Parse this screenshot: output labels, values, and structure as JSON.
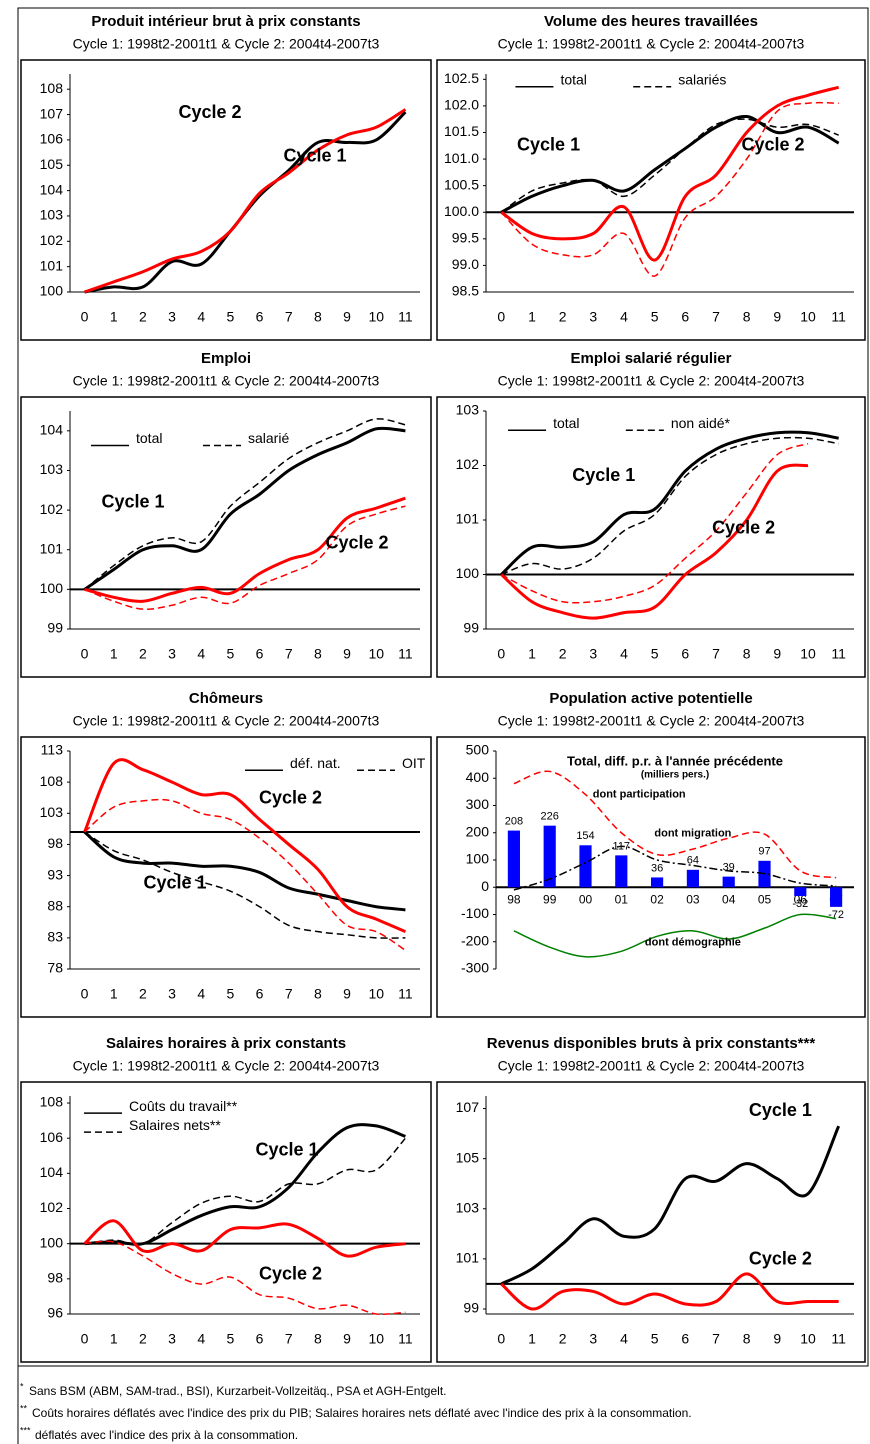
{
  "chart_data": [
    {
      "type": "line",
      "title": "Produit intérieur brut à prix constants",
      "subtitle": "Cycle 1: 1998t2-2001t1 & Cycle 2: 2004t4-2007t3",
      "x": [
        0,
        1,
        2,
        3,
        4,
        5,
        6,
        7,
        8,
        9,
        10,
        11
      ],
      "xlim": [
        -0.5,
        11.5
      ],
      "xticks": [
        0,
        1,
        2,
        3,
        4,
        5,
        6,
        7,
        8,
        9,
        10,
        11
      ],
      "ylim": [
        100,
        108.6
      ],
      "yticks": [
        100,
        101,
        102,
        103,
        104,
        105,
        106,
        107,
        108
      ],
      "series": [
        {
          "color": "#000000",
          "values": [
            100,
            100.2,
            100.2,
            101.2,
            101.1,
            102.4,
            103.8,
            104.8,
            105.9,
            105.9,
            106.0,
            107.1
          ]
        },
        {
          "color": "#ff0000",
          "values": [
            100,
            100.4,
            100.8,
            101.3,
            101.6,
            102.4,
            103.9,
            104.7,
            105.6,
            106.2,
            106.5,
            107.2
          ]
        }
      ],
      "annotations": [
        {
          "text": "Cycle 2",
          "color": "#ff0000"
        },
        {
          "text": "Cycle 1",
          "color": "#000000"
        }
      ]
    },
    {
      "type": "line",
      "title": "Volume des heures travaillées",
      "subtitle": "Cycle 1: 1998t2-2001t1 & Cycle 2: 2004t4-2007t3",
      "x": [
        0,
        1,
        2,
        3,
        4,
        5,
        6,
        7,
        8,
        9,
        10,
        11
      ],
      "xlim": [
        -0.5,
        11.5
      ],
      "xticks": [
        0,
        1,
        2,
        3,
        4,
        5,
        6,
        7,
        8,
        9,
        10,
        11
      ],
      "ylim": [
        98.5,
        102.6
      ],
      "yticks": [
        98.5,
        {
          "value": 99,
          "label": "99.0"
        },
        99.5,
        {
          "value": 100,
          "label": "100.0"
        },
        100.5,
        {
          "value": 101,
          "label": "101.0"
        },
        101.5,
        {
          "value": 102,
          "label": "102.0"
        },
        102.5
      ],
      "reference_line": 100,
      "legend": [
        {
          "name": "total",
          "dash": false
        },
        {
          "name": "salariés",
          "dash": true
        }
      ],
      "series": [
        {
          "color": "#000000",
          "values": [
            100,
            100.3,
            100.5,
            100.6,
            100.4,
            100.8,
            101.2,
            101.6,
            101.8,
            101.5,
            101.6,
            101.3
          ]
        },
        {
          "color": "#000000",
          "dash": "dash",
          "values": [
            100,
            100.4,
            100.55,
            100.6,
            100.3,
            100.7,
            101.2,
            101.65,
            101.75,
            101.6,
            101.65,
            101.45
          ]
        },
        {
          "color": "#ff0000",
          "values": [
            100,
            99.6,
            99.5,
            99.6,
            100.1,
            99.1,
            100.3,
            100.7,
            101.5,
            102.0,
            102.2,
            102.35
          ]
        },
        {
          "color": "#ff0000",
          "dash": "dash",
          "values": [
            100,
            99.4,
            99.2,
            99.2,
            99.6,
            98.8,
            99.9,
            100.3,
            101.0,
            101.9,
            102.05,
            102.05
          ]
        }
      ],
      "annotations": [
        {
          "text": "Cycle 1",
          "color": "#000000"
        },
        {
          "text": "Cycle 2",
          "color": "#ff0000"
        }
      ]
    },
    {
      "type": "line",
      "title": "Emploi",
      "subtitle": "Cycle 1: 1998t2-2001t1 & Cycle 2: 2004t4-2007t3",
      "x": [
        0,
        1,
        2,
        3,
        4,
        5,
        6,
        7,
        8,
        9,
        10,
        11
      ],
      "xlim": [
        -0.5,
        11.5
      ],
      "xticks": [
        0,
        1,
        2,
        3,
        4,
        5,
        6,
        7,
        8,
        9,
        10,
        11
      ],
      "ylim": [
        99,
        104.5
      ],
      "yticks": [
        99,
        100,
        101,
        102,
        103,
        104
      ],
      "reference_line": 100,
      "legend": [
        {
          "name": "total",
          "dash": false
        },
        {
          "name": "salarié",
          "dash": true
        }
      ],
      "series": [
        {
          "color": "#000000",
          "values": [
            100,
            100.5,
            101.0,
            101.1,
            101.0,
            101.9,
            102.4,
            103.0,
            103.4,
            103.7,
            104.05,
            104.0
          ]
        },
        {
          "color": "#000000",
          "dash": "dash",
          "values": [
            100,
            100.6,
            101.1,
            101.3,
            101.2,
            102.1,
            102.7,
            103.3,
            103.7,
            104.0,
            104.3,
            104.15
          ]
        },
        {
          "color": "#ff0000",
          "values": [
            100,
            99.8,
            99.7,
            99.9,
            100.05,
            99.9,
            100.4,
            100.75,
            101.0,
            101.8,
            102.05,
            102.3
          ]
        },
        {
          "color": "#ff0000",
          "dash": "dash",
          "values": [
            100,
            99.7,
            99.5,
            99.6,
            99.8,
            99.65,
            100.1,
            100.4,
            100.75,
            101.6,
            101.9,
            102.1
          ]
        }
      ],
      "annotations": [
        {
          "text": "Cycle 1",
          "color": "#000000"
        },
        {
          "text": "Cycle 2",
          "color": "#ff0000"
        }
      ]
    },
    {
      "type": "line",
      "title": "Emploi salarié régulier",
      "subtitle": "Cycle 1: 1998t2-2001t1 & Cycle 2: 2004t4-2007t3",
      "x": [
        0,
        1,
        2,
        3,
        4,
        5,
        6,
        7,
        8,
        9,
        10,
        11
      ],
      "xlim": [
        -0.5,
        11.5
      ],
      "xticks": [
        0,
        1,
        2,
        3,
        4,
        5,
        6,
        7,
        8,
        9,
        10,
        11
      ],
      "ylim": [
        99,
        103
      ],
      "yticks": [
        99,
        100,
        101,
        102,
        103
      ],
      "reference_line": 100,
      "legend": [
        {
          "name": "total",
          "dash": false
        },
        {
          "name": "non aidé*",
          "dash": true
        }
      ],
      "series": [
        {
          "color": "#000000",
          "values": [
            100,
            100.5,
            100.5,
            100.6,
            101.1,
            101.2,
            101.9,
            102.3,
            102.5,
            102.6,
            102.6,
            102.5
          ]
        },
        {
          "color": "#000000",
          "dash": "dash",
          "values": [
            100,
            100.2,
            100.1,
            100.3,
            100.8,
            101.1,
            101.8,
            102.2,
            102.4,
            102.5,
            102.5,
            102.4
          ]
        },
        {
          "color": "#ff0000",
          "values": [
            100,
            99.5,
            99.3,
            99.2,
            99.3,
            99.4,
            100.0,
            100.4,
            101.0,
            101.9,
            102.0,
            null
          ]
        },
        {
          "color": "#ff0000",
          "dash": "dash",
          "values": [
            100,
            99.7,
            99.5,
            99.5,
            99.6,
            99.8,
            100.3,
            100.8,
            101.5,
            102.2,
            102.4,
            null
          ]
        }
      ],
      "annotations": [
        {
          "text": "Cycle 1",
          "color": "#000000"
        },
        {
          "text": "Cycle 2",
          "color": "#ff0000"
        }
      ]
    },
    {
      "type": "line",
      "title": "Chômeurs",
      "subtitle": "Cycle 1: 1998t2-2001t1 & Cycle 2: 2004t4-2007t3",
      "x": [
        0,
        1,
        2,
        3,
        4,
        5,
        6,
        7,
        8,
        9,
        10,
        11
      ],
      "xlim": [
        -0.5,
        11.5
      ],
      "xticks": [
        0,
        1,
        2,
        3,
        4,
        5,
        6,
        7,
        8,
        9,
        10,
        11
      ],
      "ylim": [
        78,
        113
      ],
      "yticks": [
        78,
        83,
        88,
        93,
        98,
        103,
        108,
        113
      ],
      "reference_line": 100,
      "legend": [
        {
          "name": "déf. nat.",
          "dash": false
        },
        {
          "name": "OIT",
          "dash": true
        }
      ],
      "series": [
        {
          "color": "#000000",
          "values": [
            100,
            96,
            95,
            95,
            94.5,
            94.5,
            93.5,
            91,
            90,
            89,
            88,
            87.5
          ]
        },
        {
          "color": "#000000",
          "dash": "dash",
          "values": [
            100,
            97,
            95.5,
            93.5,
            92,
            90.5,
            88,
            85,
            84,
            83.5,
            83,
            83
          ]
        },
        {
          "color": "#ff0000",
          "values": [
            100,
            111,
            110,
            108,
            106,
            106,
            102,
            98,
            94,
            88,
            86,
            84
          ]
        },
        {
          "color": "#ff0000",
          "dash": "dash",
          "values": [
            100,
            104,
            105,
            105,
            103,
            102,
            99,
            95,
            90,
            85,
            84,
            81
          ]
        }
      ],
      "annotations": [
        {
          "text": "Cycle 2",
          "color": "#ff0000"
        },
        {
          "text": "Cycle 1",
          "color": "#000000"
        }
      ]
    },
    {
      "type": "bar",
      "title": "Population active potentielle",
      "subtitle": "Cycle 1: 1998t2-2001t1 & Cycle 2: 2004t4-2007t3",
      "categories": [
        "98",
        "99",
        "00",
        "01",
        "02",
        "03",
        "04",
        "05",
        "06",
        "07"
      ],
      "ylim": [
        -300,
        500
      ],
      "yticks": [
        -300,
        -200,
        -100,
        0,
        100,
        200,
        300,
        400,
        500
      ],
      "reference_line": 0,
      "series": [
        {
          "type": "bar",
          "color": "#0000ff",
          "values": [
            208,
            226,
            154,
            117,
            36,
            64,
            39,
            97,
            -32,
            -72
          ]
        },
        {
          "type": "line",
          "color": "#ff0000",
          "dash": "dash",
          "values": [
            380,
            425,
            340,
            200,
            120,
            140,
            180,
            195,
            60,
            35
          ]
        },
        {
          "type": "line",
          "color": "#000000",
          "dash": "dashdot",
          "values": [
            -10,
            30,
            90,
            150,
            100,
            80,
            60,
            50,
            15,
            5
          ]
        },
        {
          "type": "line",
          "color": "#008000",
          "values": [
            -160,
            -220,
            -255,
            -235,
            -180,
            -160,
            -190,
            -150,
            -100,
            -115
          ]
        }
      ],
      "annotations": [
        {
          "text": "Total, diff. p.r. à l'année précédente",
          "color": "#0000ff"
        },
        {
          "text": "(milliers pers.)",
          "color": "#0000ff"
        },
        {
          "text": "dont participation",
          "color": "#ff0000"
        },
        {
          "text": "dont migration",
          "color": "#000000"
        },
        {
          "text": "dont démographie",
          "color": "#008000"
        }
      ]
    },
    {
      "type": "line",
      "title": "Salaires horaires à prix constants",
      "subtitle": "Cycle 1: 1998t2-2001t1 & Cycle 2: 2004t4-2007t3",
      "x": [
        0,
        1,
        2,
        3,
        4,
        5,
        6,
        7,
        8,
        9,
        10,
        11
      ],
      "xlim": [
        -0.5,
        11.5
      ],
      "xticks": [
        0,
        1,
        2,
        3,
        4,
        5,
        6,
        7,
        8,
        9,
        10,
        11
      ],
      "ylim": [
        96,
        108.4
      ],
      "yticks": [
        96,
        98,
        100,
        102,
        104,
        106,
        108
      ],
      "reference_line": 100,
      "legend": [
        {
          "name": "Coûts du travail**",
          "dash": false
        },
        {
          "name": "Salaires nets**",
          "dash": true
        }
      ],
      "series": [
        {
          "color": "#000000",
          "values": [
            100,
            100.1,
            100,
            100.8,
            101.6,
            102.1,
            102.1,
            103.2,
            105.2,
            106.6,
            106.7,
            106.1
          ]
        },
        {
          "color": "#000000",
          "dash": "dash",
          "values": [
            100,
            100.2,
            100,
            101.2,
            102.3,
            102.7,
            102.4,
            103.4,
            103.4,
            104.2,
            104.2,
            106
          ]
        },
        {
          "color": "#ff0000",
          "values": [
            100,
            101.3,
            99.6,
            100,
            99.6,
            100.8,
            100.9,
            101.1,
            100.3,
            99.3,
            99.8,
            100
          ]
        },
        {
          "color": "#ff0000",
          "dash": "dash",
          "values": [
            100,
            100.1,
            99.3,
            98.3,
            97.7,
            98.1,
            97.1,
            96.9,
            96.3,
            96.5,
            96.0,
            96.1
          ]
        }
      ],
      "annotations": [
        {
          "text": "Cycle 1",
          "color": "#000000"
        },
        {
          "text": "Cycle 2",
          "color": "#ff0000"
        }
      ]
    },
    {
      "type": "line",
      "title": "Revenus disponibles bruts à prix constants***",
      "subtitle": "Cycle 1: 1998t2-2001t1 & Cycle 2: 2004t4-2007t3",
      "x": [
        0,
        1,
        2,
        3,
        4,
        5,
        6,
        7,
        8,
        9,
        10,
        11
      ],
      "xlim": [
        -0.5,
        11.5
      ],
      "xticks": [
        0,
        1,
        2,
        3,
        4,
        5,
        6,
        7,
        8,
        9,
        10,
        11
      ],
      "ylim": [
        98.8,
        107.5
      ],
      "yticks": [
        99,
        101,
        103,
        105,
        107
      ],
      "reference_line": 100,
      "series": [
        {
          "color": "#000000",
          "values": [
            100,
            100.6,
            101.6,
            102.6,
            101.9,
            102.2,
            104.2,
            104.1,
            104.8,
            104.2,
            103.6,
            106.3
          ]
        },
        {
          "color": "#ff0000",
          "values": [
            100,
            99.0,
            99.7,
            99.7,
            99.2,
            99.6,
            99.2,
            99.3,
            100.4,
            99.3,
            99.3,
            99.3
          ]
        }
      ],
      "annotations": [
        {
          "text": "Cycle 1",
          "color": "#000000"
        },
        {
          "text": "Cycle 2",
          "color": "#ff0000"
        }
      ]
    }
  ],
  "footnotes": [
    {
      "mark": "*",
      "text": "Sans BSM (ABM, SAM-trad., BSI), Kurzarbeit-Vollzeitäq., PSA et AGH-Entgelt."
    },
    {
      "mark": "**",
      "text": "Coûts horaires déflatés avec l'indice des prix du PIB; Salaires horaires nets déflaté avec l'indice des prix à la consommation."
    },
    {
      "mark": "***",
      "text": "déflatés avec l'indice des prix à la consommation."
    }
  ]
}
